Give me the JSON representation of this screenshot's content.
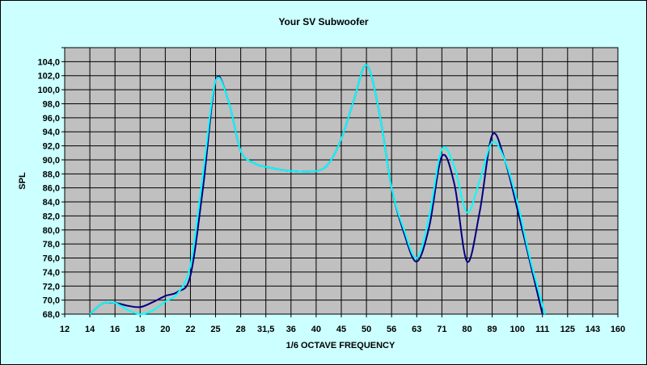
{
  "chart_data": {
    "type": "line",
    "title": "Your SV Subwoofer",
    "xlabel": "1/6 OCTAVE FREQUENCY",
    "ylabel": "SPL",
    "categories": [
      "12",
      "14",
      "16",
      "18",
      "20",
      "22",
      "25",
      "28",
      "31,5",
      "36",
      "40",
      "45",
      "50",
      "56",
      "63",
      "71",
      "80",
      "89",
      "100",
      "111",
      "125",
      "143",
      "160"
    ],
    "yticks": [
      "68,0",
      "70,0",
      "72,0",
      "74,0",
      "76,0",
      "78,0",
      "80,0",
      "82,0",
      "84,0",
      "86,0",
      "88,0",
      "90,0",
      "92,0",
      "94,0",
      "96,0",
      "98,0",
      "100,0",
      "102,0",
      "104,0"
    ],
    "ylim": [
      68,
      106
    ],
    "grid": true,
    "legend": "none",
    "colors": {
      "background": "#ccffff",
      "plot_area": "#c0c0c0",
      "grid": "#000000"
    },
    "series": [
      {
        "color": "#000080",
        "points": [
          [
            1,
            68.0
          ],
          [
            1.5,
            69.5
          ],
          [
            2,
            69.6
          ],
          [
            2.5,
            69.2
          ],
          [
            3,
            69.0
          ],
          [
            3.5,
            69.7
          ],
          [
            4,
            70.6
          ],
          [
            4.5,
            71.2
          ],
          [
            5,
            73.5
          ],
          [
            5.5,
            86.0
          ],
          [
            6,
            101.2
          ],
          [
            6.5,
            98.5
          ],
          [
            7,
            91.3
          ],
          [
            7.5,
            89.6
          ],
          [
            8,
            89.0
          ],
          [
            9,
            88.4
          ],
          [
            10,
            88.4
          ],
          [
            10.5,
            89.5
          ],
          [
            11,
            93.0
          ],
          [
            11.5,
            98.5
          ],
          [
            12,
            103.5
          ],
          [
            12.5,
            97.0
          ],
          [
            13,
            86.0
          ],
          [
            13.5,
            79.5
          ],
          [
            14,
            75.5
          ],
          [
            14.5,
            80.5
          ],
          [
            15,
            90.5
          ],
          [
            15.5,
            86.5
          ],
          [
            16,
            75.5
          ],
          [
            16.5,
            82.5
          ],
          [
            17,
            93.5
          ],
          [
            17.5,
            90.0
          ],
          [
            18,
            83.0
          ],
          [
            18.5,
            75.5
          ],
          [
            19,
            68.0
          ]
        ]
      },
      {
        "color": "#00ffff",
        "points": [
          [
            1,
            68.0
          ],
          [
            1.5,
            69.5
          ],
          [
            2,
            69.6
          ],
          [
            2.5,
            68.6
          ],
          [
            3,
            68.0
          ],
          [
            3.5,
            68.5
          ],
          [
            4,
            69.8
          ],
          [
            4.5,
            71.0
          ],
          [
            5,
            75.0
          ],
          [
            5.5,
            88.0
          ],
          [
            6,
            101.2
          ],
          [
            6.5,
            98.5
          ],
          [
            7,
            91.3
          ],
          [
            7.5,
            89.6
          ],
          [
            8,
            89.0
          ],
          [
            9,
            88.4
          ],
          [
            10,
            88.4
          ],
          [
            10.5,
            89.5
          ],
          [
            11,
            93.0
          ],
          [
            11.5,
            98.5
          ],
          [
            12,
            103.5
          ],
          [
            12.5,
            97.0
          ],
          [
            13,
            86.0
          ],
          [
            13.5,
            80.0
          ],
          [
            14,
            76.0
          ],
          [
            14.5,
            82.0
          ],
          [
            15,
            91.5
          ],
          [
            15.5,
            89.0
          ],
          [
            16,
            82.5
          ],
          [
            16.5,
            87.0
          ],
          [
            17,
            92.5
          ],
          [
            17.5,
            90.0
          ],
          [
            18,
            84.0
          ],
          [
            18.5,
            76.0
          ],
          [
            19.1,
            68.0
          ]
        ]
      }
    ]
  }
}
